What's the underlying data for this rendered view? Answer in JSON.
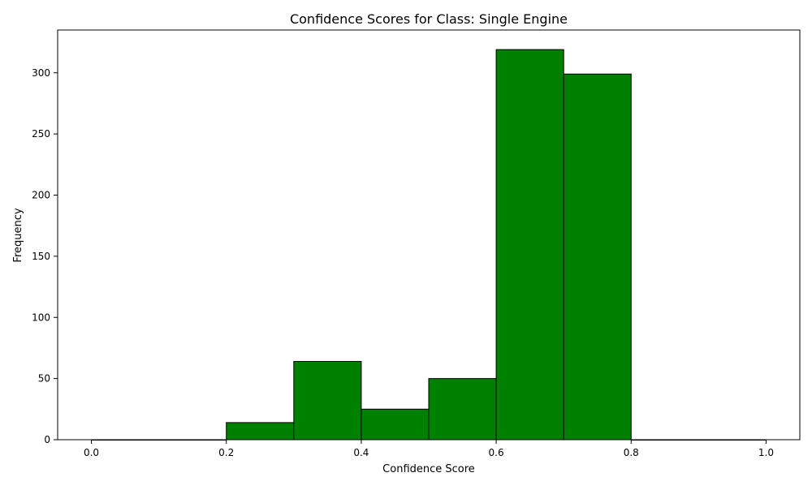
{
  "chart_data": {
    "type": "bar",
    "title": "Confidence Scores for Class: Single Engine",
    "xlabel": "Confidence Score",
    "ylabel": "Frequency",
    "bins": [
      {
        "x0": 0.0,
        "x1": 0.1,
        "value": 0
      },
      {
        "x0": 0.1,
        "x1": 0.2,
        "value": 0
      },
      {
        "x0": 0.2,
        "x1": 0.3,
        "value": 14
      },
      {
        "x0": 0.3,
        "x1": 0.4,
        "value": 64
      },
      {
        "x0": 0.4,
        "x1": 0.5,
        "value": 25
      },
      {
        "x0": 0.5,
        "x1": 0.6,
        "value": 50
      },
      {
        "x0": 0.6,
        "x1": 0.7,
        "value": 319
      },
      {
        "x0": 0.7,
        "x1": 0.8,
        "value": 299
      },
      {
        "x0": 0.8,
        "x1": 0.9,
        "value": 0
      },
      {
        "x0": 0.9,
        "x1": 1.0,
        "value": 0
      }
    ],
    "xlim": [
      -0.05,
      1.05
    ],
    "ylim": [
      0,
      335
    ],
    "xticks": [
      "0.0",
      "0.2",
      "0.4",
      "0.6",
      "0.8",
      "1.0"
    ],
    "yticks": [
      "0",
      "50",
      "100",
      "150",
      "200",
      "250",
      "300"
    ],
    "grid": false,
    "bar_color": "#008000",
    "edge_color": "#000000"
  }
}
